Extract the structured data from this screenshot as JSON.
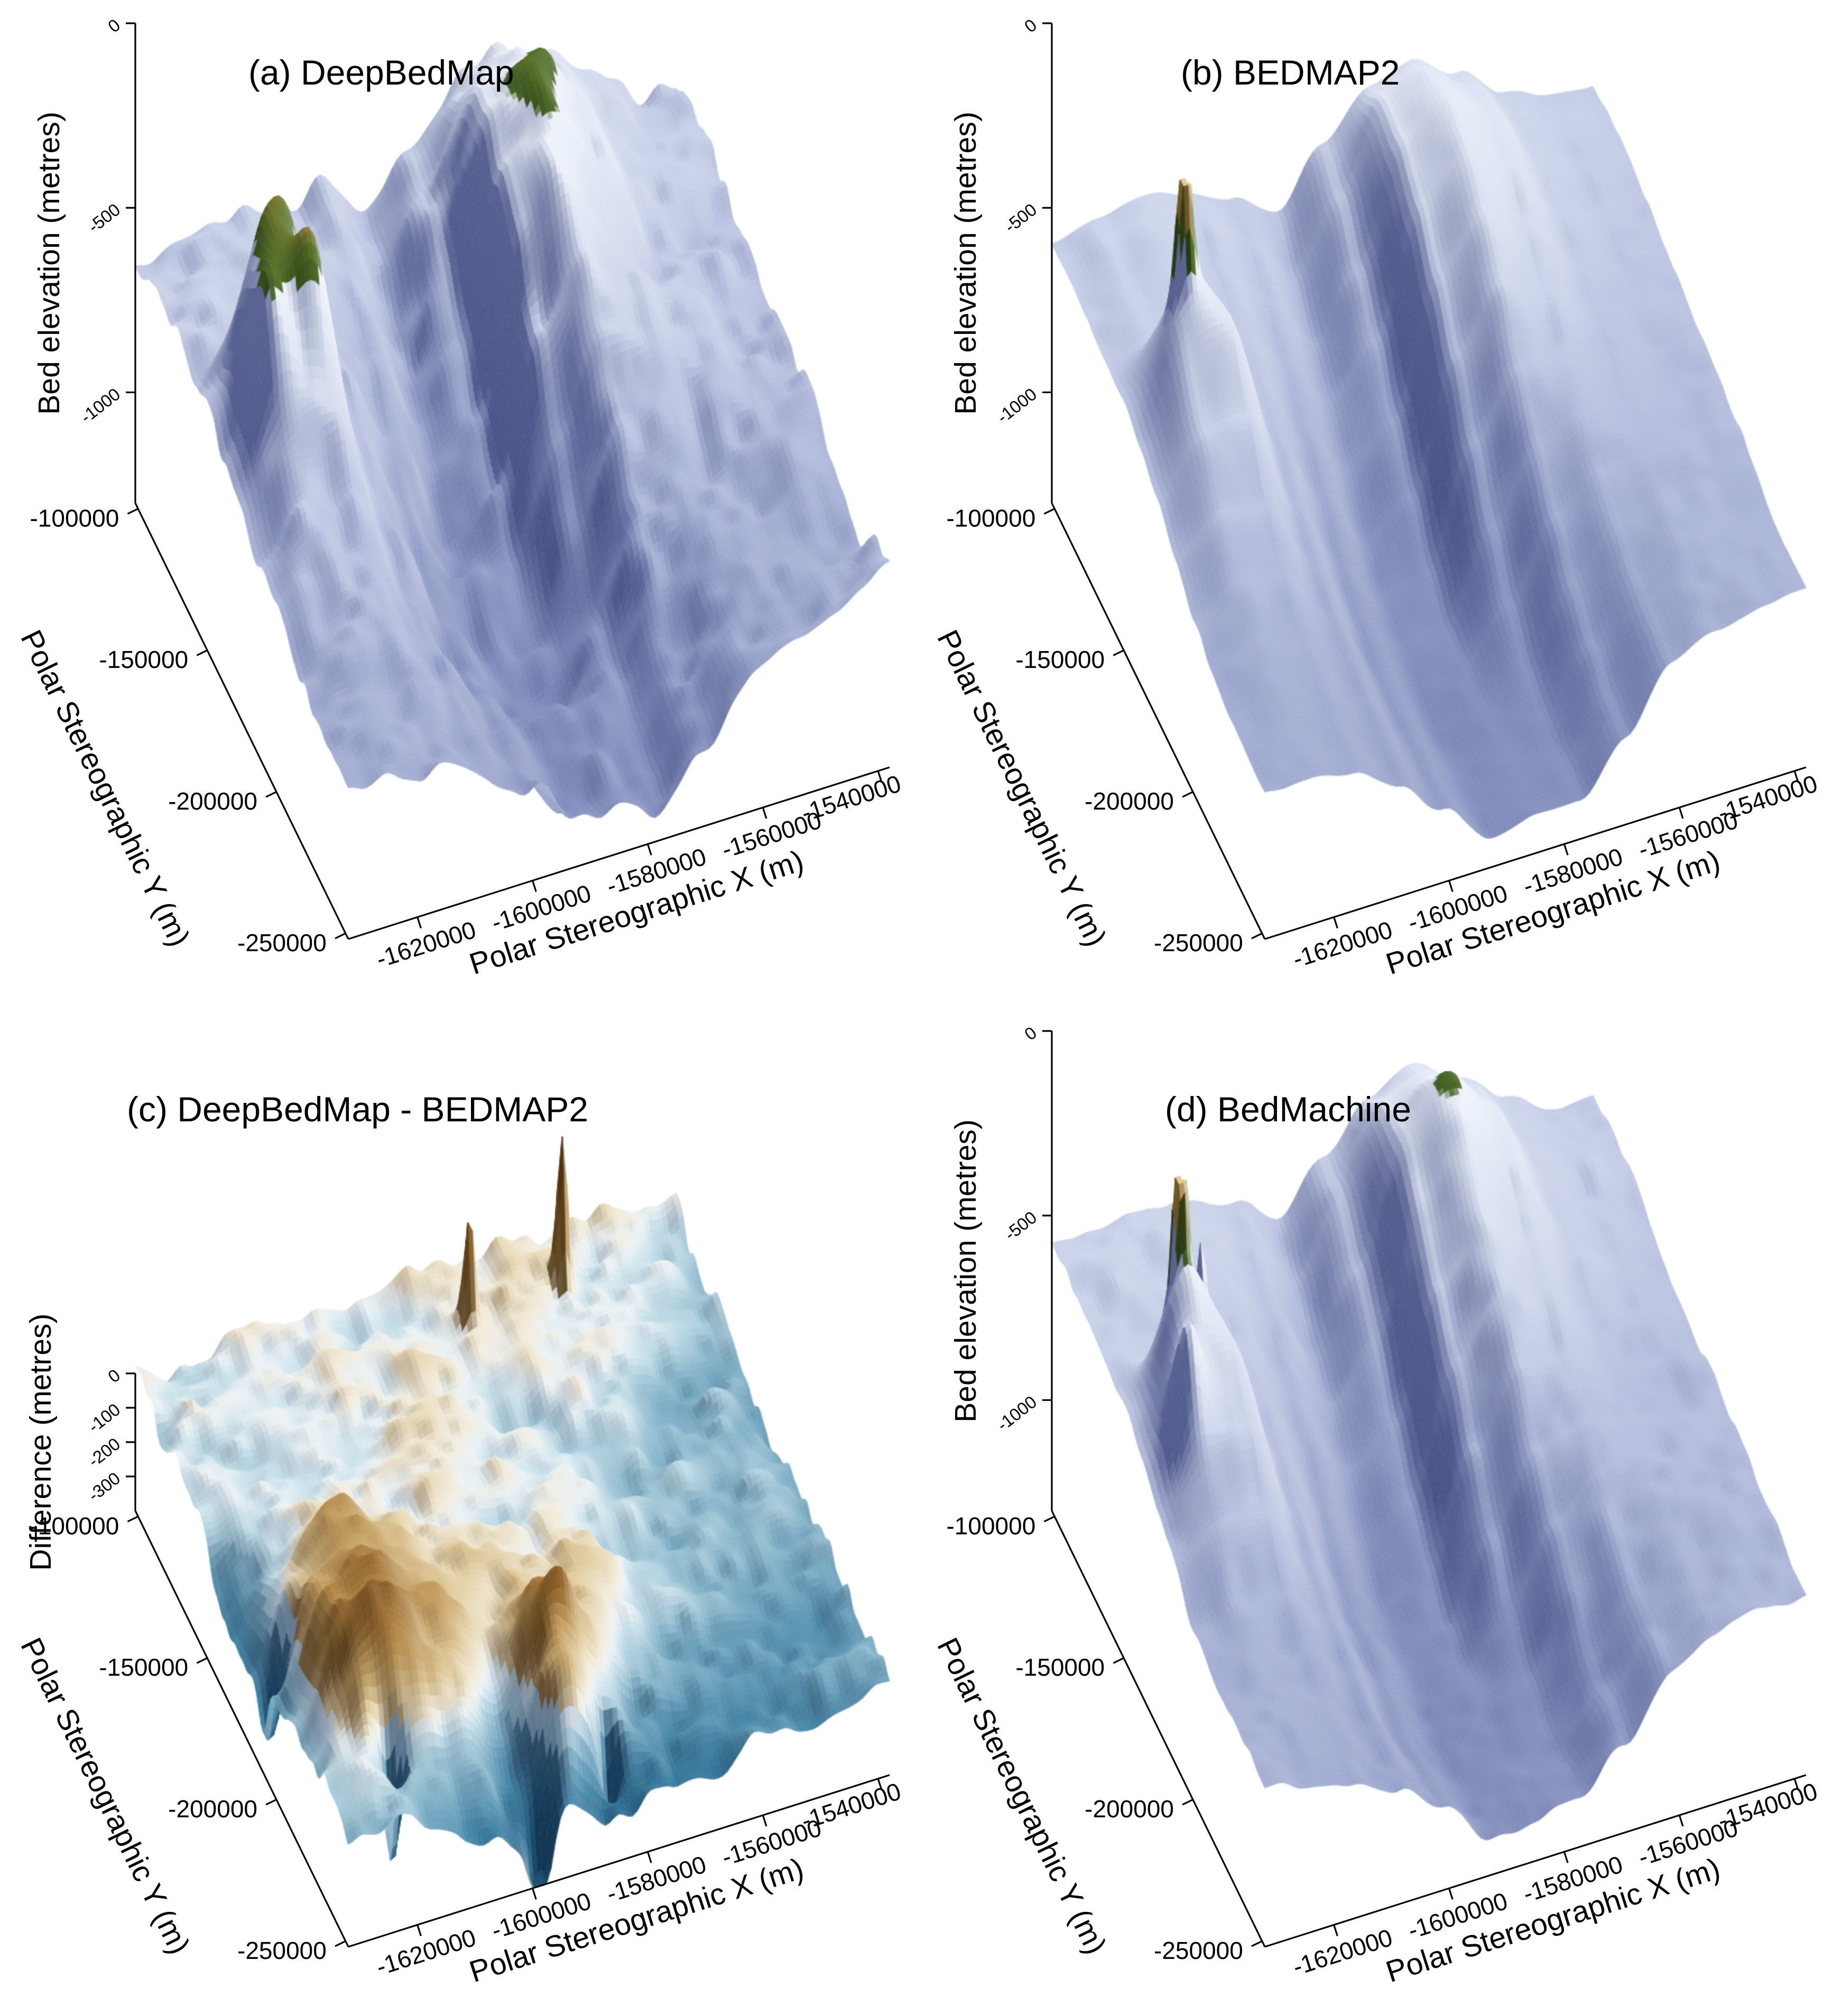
{
  "page": {
    "background": "#ffffff"
  },
  "bed_grid": [
    [
      -600,
      -580,
      -560,
      -580,
      -620,
      -700,
      -560,
      -430,
      -400,
      -480,
      -580,
      -620,
      -640
    ],
    [
      -590,
      -560,
      -540,
      -570,
      -640,
      -780,
      -600,
      -380,
      -350,
      -430,
      -560,
      -610,
      -630
    ],
    [
      -600,
      -570,
      -560,
      -600,
      -700,
      -860,
      -700,
      -400,
      -330,
      -400,
      -560,
      -620,
      -640
    ],
    [
      -620,
      -600,
      -600,
      -650,
      -780,
      -920,
      -800,
      -460,
      -360,
      -430,
      -590,
      -640,
      -660
    ],
    [
      -640,
      -540,
      -480,
      -700,
      -860,
      -1000,
      -920,
      -560,
      -420,
      -500,
      -630,
      -670,
      -680
    ],
    [
      -660,
      -480,
      -420,
      -760,
      -940,
      -1100,
      -1020,
      -680,
      -520,
      -580,
      -670,
      -700,
      -700
    ],
    [
      -700,
      -560,
      -560,
      -820,
      -1020,
      -1150,
      -1120,
      -820,
      -640,
      -660,
      -710,
      -730,
      -720
    ],
    [
      -760,
      -680,
      -700,
      -880,
      -1080,
      -1190,
      -1180,
      -960,
      -760,
      -720,
      -740,
      -750,
      -740
    ],
    [
      -820,
      -780,
      -800,
      -930,
      -1110,
      -1220,
      -1200,
      -1080,
      -860,
      -780,
      -770,
      -770,
      -760
    ],
    [
      -860,
      -840,
      -870,
      -960,
      -1120,
      -1230,
      -1210,
      -1150,
      -940,
      -830,
      -800,
      -790,
      -780
    ],
    [
      -880,
      -870,
      -900,
      -980,
      -1120,
      -1230,
      -1210,
      -1180,
      -1000,
      -870,
      -820,
      -810,
      -800
    ],
    [
      -890,
      -890,
      -920,
      -990,
      -1110,
      -1220,
      -1200,
      -1190,
      -1040,
      -890,
      -840,
      -820,
      -810
    ],
    [
      -900,
      -900,
      -930,
      -1000,
      -1100,
      -1210,
      -1190,
      -1180,
      -1060,
      -900,
      -850,
      -830,
      -820
    ]
  ],
  "chart_data": [
    {
      "type": "surface3d",
      "panel_id": "a",
      "title": "(a) DeepBedMap",
      "xlabel": "Polar Stereographic X (m)",
      "ylabel": "Polar Stereographic Y (m)",
      "zlabel": "Bed elevation (metres)",
      "x_range": [
        -1632000,
        -1538000
      ],
      "x_ticks": [
        -1620000,
        -1600000,
        -1580000,
        -1560000,
        -1540000
      ],
      "y_range": [
        -98000,
        -252000
      ],
      "y_ticks": [
        -100000,
        -150000,
        -200000,
        -250000
      ],
      "z_range": [
        0,
        -1300
      ],
      "z_ticks": [
        0,
        -500,
        -1000
      ],
      "colors": {
        "deep": "#7e8aba",
        "shallow": "#f0f4fa",
        "land_green": "#486826",
        "land_tan": "#e4ca96"
      },
      "surface": {
        "units": "metres",
        "grid": "shared-bed",
        "colormap": "bed",
        "noise_amp": 115,
        "noise_freqs": [
          6,
          14,
          30
        ],
        "noise_weights": [
          0.48,
          0.32,
          0.2
        ],
        "seed": 3,
        "clamp": [
          -1290,
          -60
        ],
        "spikes": [
          {
            "u": 0.1,
            "v": 0.36,
            "r": 0.065,
            "a": 300
          },
          {
            "u": 0.14,
            "v": 0.3,
            "r": 0.045,
            "a": 220
          },
          {
            "u": 0.075,
            "v": 0.44,
            "r": 0.045,
            "a": 230
          },
          {
            "u": 0.16,
            "v": 0.42,
            "r": 0.035,
            "a": 170
          },
          {
            "u": 0.66,
            "v": 0.18,
            "r": 0.1,
            "a": 170
          },
          {
            "u": 0.62,
            "v": 0.32,
            "r": 0.06,
            "a": 120
          }
        ]
      }
    },
    {
      "type": "surface3d",
      "panel_id": "b",
      "title": "(b) BEDMAP2",
      "xlabel": "Polar Stereographic X (m)",
      "ylabel": "Polar Stereographic Y (m)",
      "zlabel": "Bed elevation (metres)",
      "x_range": [
        -1632000,
        -1538000
      ],
      "x_ticks": [
        -1620000,
        -1600000,
        -1580000,
        -1560000,
        -1540000
      ],
      "y_range": [
        -98000,
        -252000
      ],
      "y_ticks": [
        -100000,
        -150000,
        -200000,
        -250000
      ],
      "z_range": [
        0,
        -1300
      ],
      "z_ticks": [
        0,
        -500,
        -1000
      ],
      "colors": {
        "deep": "#7e8aba",
        "shallow": "#f0f4fa",
        "land_green": "#486826",
        "land_tan": "#e4ca96"
      },
      "surface": {
        "units": "metres",
        "grid": "shared-bed",
        "colormap": "bed",
        "noise_amp": 24,
        "noise_freqs": [
          6,
          14,
          30
        ],
        "noise_weights": [
          0.48,
          0.32,
          0.2
        ],
        "seed": 11,
        "clamp": [
          -1290,
          -60
        ],
        "spikes": [
          {
            "u": 0.105,
            "v": 0.36,
            "r": 0.055,
            "a": 180
          },
          {
            "u": 0.105,
            "v": 0.355,
            "r": 0.016,
            "a": 430
          }
        ]
      }
    },
    {
      "type": "surface3d",
      "panel_id": "c",
      "title": "(c) DeepBedMap - BEDMAP2",
      "xlabel": "Polar Stereographic X (m)",
      "ylabel": "Polar Stereographic Y (m)",
      "zlabel": "Difference (metres)",
      "x_range": [
        -1632000,
        -1538000
      ],
      "x_ticks": [
        -1620000,
        -1600000,
        -1580000,
        -1560000,
        -1540000
      ],
      "y_range": [
        -98000,
        -252000
      ],
      "y_ticks": [
        -100000,
        -150000,
        -200000,
        -250000
      ],
      "z_range": [
        0,
        -400
      ],
      "z_ticks": [
        0,
        -100,
        -200,
        -300
      ],
      "colors": {
        "negative": "#1c4f6e",
        "zero": "#eef3f5",
        "positive": "#8a5a28"
      },
      "surface": {
        "units": "metres",
        "grid": [
          [
            0,
            20,
            40,
            30,
            20,
            40,
            30,
            20,
            60,
            20,
            0,
            -10,
            -20
          ],
          [
            -10,
            10,
            30,
            20,
            30,
            20,
            10,
            30,
            40,
            10,
            -10,
            -20,
            -30
          ],
          [
            -20,
            0,
            10,
            10,
            20,
            10,
            0,
            10,
            20,
            0,
            -20,
            -30,
            -40
          ],
          [
            -40,
            -10,
            0,
            20,
            10,
            0,
            10,
            0,
            10,
            -10,
            -30,
            -40,
            -50
          ],
          [
            -80,
            -20,
            10,
            30,
            20,
            10,
            0,
            10,
            0,
            -20,
            -40,
            -50,
            -60
          ],
          [
            -140,
            0,
            80,
            60,
            40,
            20,
            10,
            0,
            -10,
            -30,
            -50,
            -60,
            -70
          ],
          [
            -180,
            40,
            150,
            100,
            60,
            40,
            20,
            10,
            -20,
            -40,
            -60,
            -70,
            -80
          ],
          [
            -140,
            80,
            160,
            120,
            80,
            60,
            40,
            20,
            -40,
            -60,
            -80,
            -80,
            -90
          ],
          [
            -100,
            160,
            240,
            140,
            100,
            90,
            80,
            40,
            -60,
            -80,
            -100,
            -90,
            -100
          ],
          [
            -80,
            200,
            260,
            160,
            60,
            120,
            100,
            20,
            -80,
            -100,
            -120,
            -100,
            -110
          ],
          [
            -70,
            120,
            160,
            80,
            -40,
            180,
            120,
            -40,
            -120,
            -130,
            -140,
            -110,
            -120
          ],
          [
            -60,
            -40,
            -60,
            -80,
            -180,
            120,
            -40,
            -140,
            -160,
            -150,
            -150,
            -120,
            -130
          ],
          [
            -50,
            -80,
            -160,
            -240,
            -320,
            -180,
            -280,
            -220,
            -180,
            -160,
            -160,
            -130,
            -140
          ]
        ],
        "colormap": "diff",
        "noise_amp": 105,
        "noise_freqs": [
          7,
          16,
          36
        ],
        "noise_weights": [
          0.42,
          0.36,
          0.22
        ],
        "seed": 5,
        "clamp": [
          -400,
          460
        ],
        "spikes": [
          {
            "u": 0.75,
            "v": 0.1,
            "r": 0.013,
            "a": 430
          },
          {
            "u": 0.57,
            "v": 0.12,
            "r": 0.012,
            "a": 300
          },
          {
            "u": 0.12,
            "v": 0.8,
            "r": 0.05,
            "a": 140
          },
          {
            "u": 0.45,
            "v": 0.86,
            "r": 0.03,
            "a": 120
          },
          {
            "u": 0.12,
            "v": 0.9,
            "r": 0.02,
            "a": -300
          },
          {
            "u": 0.36,
            "v": 0.99,
            "r": 0.025,
            "a": -260
          },
          {
            "u": 0.5,
            "v": 0.95,
            "r": 0.02,
            "a": -220
          },
          {
            "u": 0.02,
            "v": 0.6,
            "r": 0.03,
            "a": -200
          }
        ]
      }
    },
    {
      "type": "surface3d",
      "panel_id": "d",
      "title": "(d) BedMachine",
      "xlabel": "Polar Stereographic X (m)",
      "ylabel": "Polar Stereographic Y (m)",
      "zlabel": "Bed elevation (metres)",
      "x_range": [
        -1632000,
        -1538000
      ],
      "x_ticks": [
        -1620000,
        -1600000,
        -1580000,
        -1560000,
        -1540000
      ],
      "y_range": [
        -98000,
        -252000
      ],
      "y_ticks": [
        -100000,
        -150000,
        -200000,
        -250000
      ],
      "z_range": [
        0,
        -1300
      ],
      "z_ticks": [
        0,
        -500,
        -1000
      ],
      "colors": {
        "deep": "#7e8aba",
        "shallow": "#f0f4fa",
        "land_green": "#486826",
        "land_tan": "#e4ca96"
      },
      "surface": {
        "units": "metres",
        "grid": "shared-bed",
        "colormap": "bed",
        "noise_amp": 46,
        "noise_freqs": [
          6,
          14,
          30
        ],
        "noise_weights": [
          0.48,
          0.32,
          0.2
        ],
        "seed": 17,
        "clamp": [
          -1290,
          -60
        ],
        "spikes": [
          {
            "u": 0.105,
            "v": 0.36,
            "r": 0.05,
            "a": 260
          },
          {
            "u": 0.105,
            "v": 0.335,
            "r": 0.013,
            "a": 650
          },
          {
            "u": 0.16,
            "v": 0.295,
            "r": 0.012,
            "a": 240
          },
          {
            "u": 0.07,
            "v": 0.46,
            "r": 0.035,
            "a": 240
          },
          {
            "u": 0.66,
            "v": 0.18,
            "r": 0.09,
            "a": 90
          }
        ]
      }
    }
  ]
}
